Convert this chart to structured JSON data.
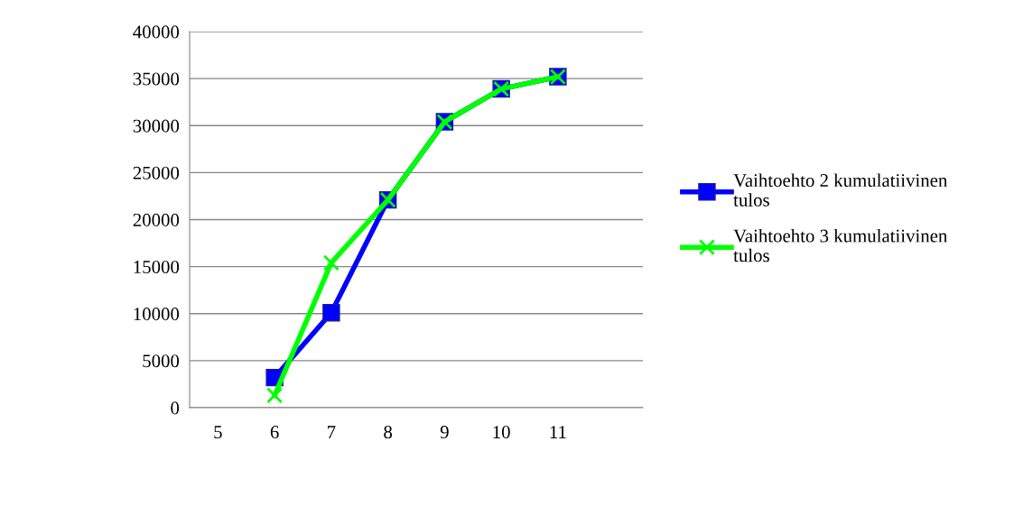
{
  "chart_data": {
    "type": "line",
    "categories": [
      "5",
      "6",
      "7",
      "8",
      "9",
      "10",
      "11",
      null
    ],
    "series": [
      {
        "name": "Vaihtoehto 2 kumulatiivinen tulos",
        "color": "#0000ff",
        "marker": "square",
        "values": [
          null,
          3200,
          10100,
          22100,
          30400,
          33900,
          35200,
          null
        ]
      },
      {
        "name": "Vaihtoehto 3 kumulatiivinen tulos",
        "color": "#00ff00",
        "marker": "cross",
        "values": [
          null,
          1300,
          15400,
          22100,
          30400,
          33900,
          35200,
          null
        ]
      }
    ],
    "ylim": [
      0,
      40000
    ],
    "yticks": [
      0,
      5000,
      10000,
      15000,
      20000,
      25000,
      30000,
      35000,
      40000
    ],
    "grid": "y",
    "legend": "right"
  }
}
